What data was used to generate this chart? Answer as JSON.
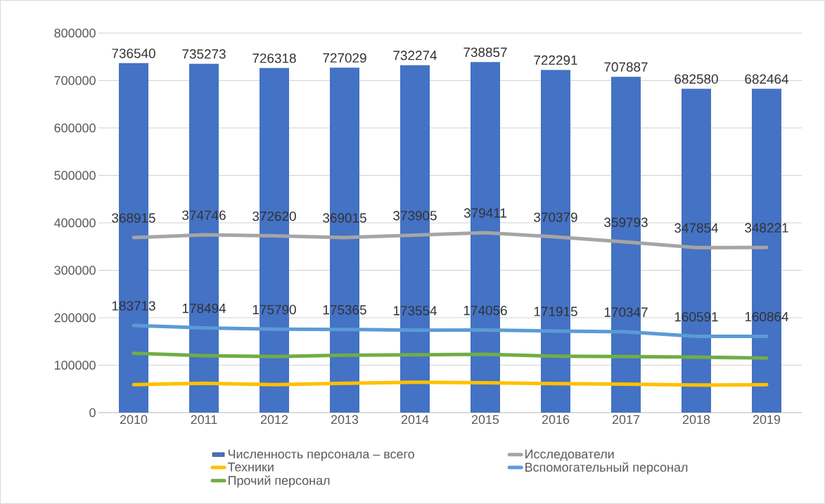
{
  "chart_data": {
    "type": "bar",
    "categories": [
      "2010",
      "2011",
      "2012",
      "2013",
      "2014",
      "2015",
      "2016",
      "2017",
      "2018",
      "2019"
    ],
    "series": [
      {
        "name": "Численность персонала – всего",
        "color": "#4472c4",
        "values": [
          736540,
          735273,
          726318,
          727029,
          732274,
          738857,
          722291,
          707887,
          682580,
          682464
        ],
        "value_labels": [
          "736540",
          "735273",
          "726318",
          "727029",
          "732274",
          "738857",
          "722291",
          "707887",
          "682580",
          "682464"
        ]
      },
      {
        "name": "Исследователи",
        "type": "line",
        "color": "#a5a5a5",
        "values": [
          368915,
          374746,
          372620,
          369015,
          373905,
          379411,
          370379,
          359793,
          347854,
          348221
        ],
        "value_labels": [
          "368915",
          "374746",
          "372620",
          "369015",
          "373905",
          "379411",
          "370379",
          "359793",
          "347854",
          "348221"
        ]
      },
      {
        "name": "Техники",
        "type": "line",
        "color": "#ffc000",
        "values": [
          59000,
          62000,
          59000,
          62000,
          64000,
          63000,
          61000,
          60000,
          58000,
          59000
        ]
      },
      {
        "name": "Вспомогательный персонал",
        "type": "line",
        "color": "#5b9bd5",
        "values": [
          183713,
          178494,
          175790,
          175365,
          173554,
          174056,
          171915,
          170347,
          160591,
          160864
        ],
        "value_labels": [
          "183713",
          "178494",
          "175790",
          "175365",
          "173554",
          "174056",
          "171915",
          "170347",
          "160591",
          "160864"
        ]
      },
      {
        "name": "Прочий персонал",
        "type": "line",
        "color": "#70ad47",
        "values": [
          125000,
          120000,
          118000,
          121000,
          122000,
          123000,
          119000,
          118000,
          117000,
          115000
        ]
      }
    ],
    "ylim": [
      0,
      800000
    ],
    "yticks": [
      0,
      100000,
      200000,
      300000,
      400000,
      500000,
      600000,
      700000,
      800000
    ],
    "grid": "y",
    "legend": "bottom",
    "marker": "none",
    "line_style": "solid"
  }
}
